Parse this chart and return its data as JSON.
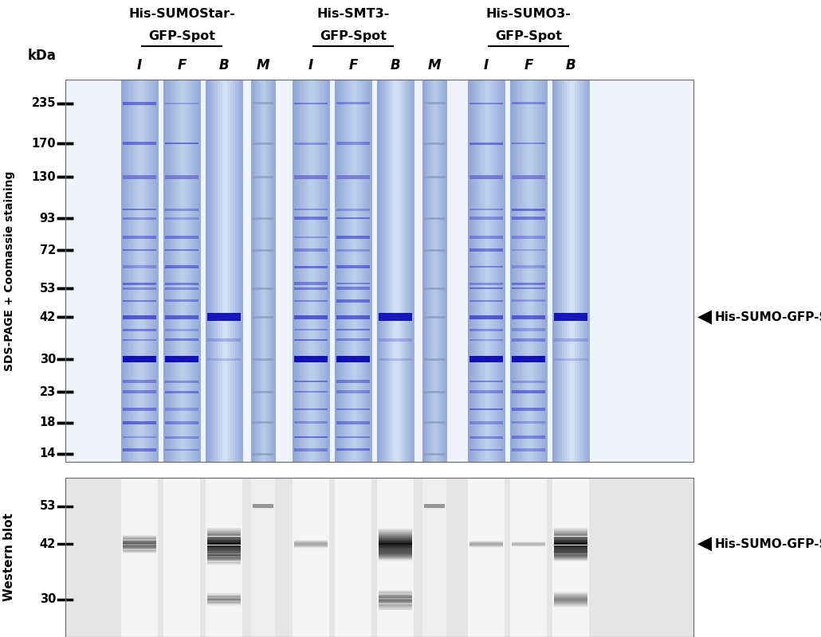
{
  "title_group1": "His-SUMOStar-\nGFP-Spot",
  "title_group2": "His-SMT3-\nGFP-Spot",
  "title_group3": "His-SUMO3-\nGFP-Spot",
  "col_labels": [
    "kDa",
    "I",
    "F",
    "B",
    "M",
    "I",
    "F",
    "B",
    "M",
    "I",
    "F",
    "B"
  ],
  "kda_labels_gel": [
    "235",
    "170",
    "130",
    "93",
    "72",
    "53",
    "42",
    "30",
    "23",
    "18",
    "14"
  ],
  "kda_labels_wb": [
    "53",
    "42",
    "30"
  ],
  "side_label_gel": "SDS-PAGE + Coomassie staining",
  "side_label_wb": "Western blot",
  "annotation_gel": "His-SUMO-GFP-Spot",
  "annotation_wb": "His-SUMO-GFP-Spot",
  "bg_color_gel": "#c8d8f0",
  "bg_color_wb": "#e8e8e8",
  "fig_bg": "#ffffff"
}
